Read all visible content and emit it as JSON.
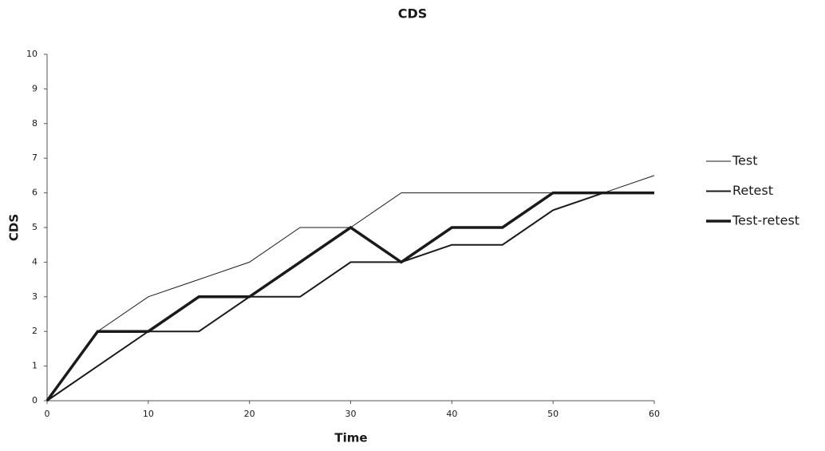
{
  "chart_data": {
    "type": "line",
    "title": "CDS",
    "x_label": "Time",
    "y_label": "CDS",
    "x": [
      0,
      5,
      10,
      15,
      20,
      25,
      30,
      35,
      40,
      45,
      50,
      55,
      60
    ],
    "series": [
      {
        "name": "Test",
        "color": "#1a1a1a",
        "width": 1,
        "values": [
          0,
          2,
          3,
          3.5,
          4,
          5,
          5,
          6,
          6,
          6,
          6,
          6,
          6.5
        ]
      },
      {
        "name": "Retest",
        "color": "#1a1a1a",
        "width": 2,
        "values": [
          0,
          1,
          2,
          2,
          3,
          3,
          4,
          4,
          4.5,
          4.5,
          5.5,
          6,
          6
        ]
      },
      {
        "name": "Test-retest",
        "color": "#1a1a1a",
        "width": 3.5,
        "values": [
          0,
          2,
          2,
          3,
          3,
          4,
          5,
          4,
          5,
          5,
          6,
          6,
          6
        ]
      }
    ],
    "xlim": [
      0,
      60
    ],
    "xticks": [
      0,
      10,
      20,
      30,
      40,
      50,
      60
    ],
    "ylim": [
      0,
      10
    ],
    "yticks": [
      0,
      1,
      2,
      3,
      4,
      5,
      6,
      7,
      8,
      9,
      10
    ],
    "grid": false,
    "legend": "right"
  }
}
